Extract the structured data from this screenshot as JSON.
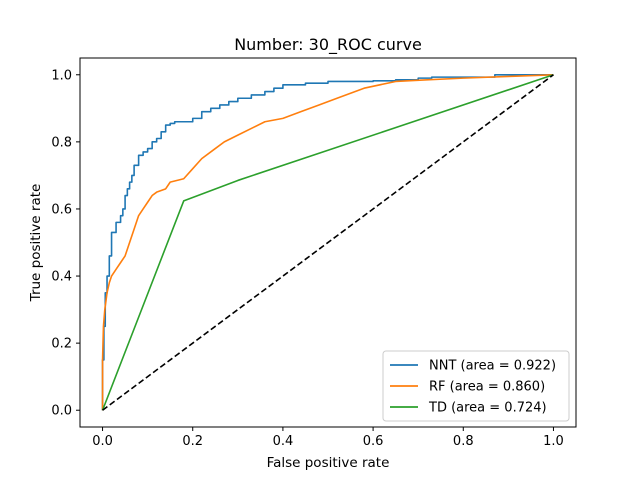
{
  "chart_data": {
    "type": "line",
    "title": "Number: 30_ROC curve",
    "xlabel": "False positive rate",
    "ylabel": "True positive rate",
    "xlim": [
      -0.05,
      1.05
    ],
    "ylim": [
      -0.05,
      1.05
    ],
    "xticks": [
      0.0,
      0.2,
      0.4,
      0.6,
      0.8,
      1.0
    ],
    "yticks": [
      0.0,
      0.2,
      0.4,
      0.6,
      0.8,
      1.0
    ],
    "xtick_labels": [
      "0.0",
      "0.2",
      "0.4",
      "0.6",
      "0.8",
      "1.0"
    ],
    "ytick_labels": [
      "0.0",
      "0.2",
      "0.4",
      "0.6",
      "0.8",
      "1.0"
    ],
    "grid": false,
    "legend_position": "lower-right",
    "series": [
      {
        "name": "NNT (area = 0.922)",
        "color": "#1f77b4",
        "style": "step",
        "x": [
          0.0,
          0.0,
          0.003,
          0.003,
          0.006,
          0.006,
          0.01,
          0.01,
          0.015,
          0.015,
          0.02,
          0.02,
          0.03,
          0.03,
          0.04,
          0.04,
          0.045,
          0.045,
          0.05,
          0.05,
          0.055,
          0.055,
          0.06,
          0.06,
          0.065,
          0.065,
          0.07,
          0.07,
          0.08,
          0.08,
          0.09,
          0.09,
          0.1,
          0.1,
          0.11,
          0.11,
          0.12,
          0.12,
          0.13,
          0.13,
          0.14,
          0.14,
          0.15,
          0.15,
          0.16,
          0.16,
          0.2,
          0.2,
          0.22,
          0.22,
          0.24,
          0.24,
          0.26,
          0.26,
          0.28,
          0.28,
          0.3,
          0.3,
          0.33,
          0.33,
          0.36,
          0.36,
          0.38,
          0.38,
          0.4,
          0.4,
          0.45,
          0.45,
          0.5,
          0.5,
          0.55,
          0.55,
          0.6,
          0.6,
          0.65,
          0.65,
          0.7,
          0.7,
          0.73,
          0.73,
          0.8,
          0.8,
          0.87,
          0.87,
          1.0
        ],
        "y": [
          0.0,
          0.15,
          0.15,
          0.25,
          0.25,
          0.35,
          0.35,
          0.4,
          0.4,
          0.46,
          0.46,
          0.53,
          0.53,
          0.56,
          0.56,
          0.58,
          0.58,
          0.6,
          0.6,
          0.64,
          0.64,
          0.66,
          0.66,
          0.68,
          0.68,
          0.7,
          0.7,
          0.73,
          0.73,
          0.76,
          0.76,
          0.77,
          0.77,
          0.78,
          0.78,
          0.8,
          0.8,
          0.81,
          0.81,
          0.83,
          0.83,
          0.85,
          0.85,
          0.855,
          0.855,
          0.86,
          0.86,
          0.87,
          0.87,
          0.89,
          0.89,
          0.9,
          0.9,
          0.91,
          0.91,
          0.92,
          0.92,
          0.93,
          0.93,
          0.94,
          0.94,
          0.95,
          0.95,
          0.96,
          0.96,
          0.97,
          0.97,
          0.975,
          0.975,
          0.98,
          0.98,
          0.98,
          0.98,
          0.982,
          0.982,
          0.985,
          0.985,
          0.99,
          0.99,
          0.993,
          0.993,
          0.993,
          0.993,
          1.0,
          1.0
        ]
      },
      {
        "name": "RF (area = 0.860)",
        "color": "#ff7f0e",
        "style": "line",
        "x": [
          0.0,
          0.0,
          0.002,
          0.005,
          0.01,
          0.015,
          0.02,
          0.03,
          0.04,
          0.05,
          0.06,
          0.07,
          0.08,
          0.09,
          0.1,
          0.11,
          0.12,
          0.14,
          0.15,
          0.18,
          0.2,
          0.22,
          0.25,
          0.27,
          0.3,
          0.33,
          0.36,
          0.4,
          0.44,
          0.48,
          0.52,
          0.58,
          0.65,
          0.72,
          0.8,
          0.9,
          1.0
        ],
        "y": [
          0.0,
          0.15,
          0.25,
          0.3,
          0.35,
          0.38,
          0.4,
          0.42,
          0.44,
          0.46,
          0.5,
          0.54,
          0.58,
          0.6,
          0.62,
          0.64,
          0.65,
          0.66,
          0.68,
          0.69,
          0.72,
          0.75,
          0.78,
          0.8,
          0.82,
          0.84,
          0.86,
          0.87,
          0.89,
          0.91,
          0.93,
          0.96,
          0.98,
          0.985,
          0.99,
          0.995,
          1.0
        ]
      },
      {
        "name": "TD (area = 0.724)",
        "color": "#2ca02c",
        "style": "line",
        "x": [
          0.0,
          0.18,
          0.3,
          1.0
        ],
        "y": [
          0.0,
          0.624,
          0.685,
          1.0
        ]
      },
      {
        "name": "",
        "color": "#000000",
        "style": "dashed",
        "x": [
          0.0,
          1.0
        ],
        "y": [
          0.0,
          1.0
        ]
      }
    ]
  }
}
